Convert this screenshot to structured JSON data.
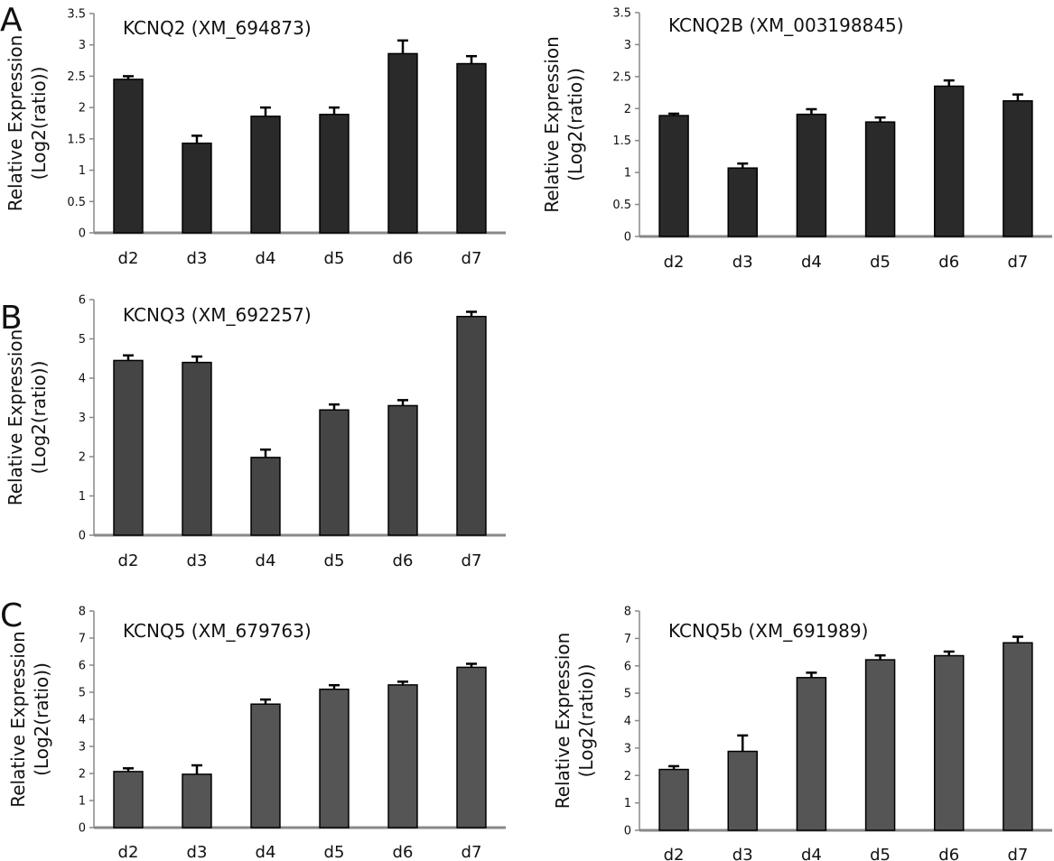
{
  "figure": {
    "panel_letters": [
      "A",
      "B",
      "C"
    ]
  },
  "chart_data": [
    {
      "type": "bar",
      "panel": "A",
      "title": "KCNQ2 (XM_694873)",
      "ylabel": [
        "Relative Expression",
        "(Log2(ratio))"
      ],
      "xlabel": "",
      "categories": [
        "d2",
        "d3",
        "d4",
        "d5",
        "d6",
        "d7"
      ],
      "values": [
        2.45,
        1.43,
        1.86,
        1.89,
        2.86,
        2.7
      ],
      "errors": [
        0.05,
        0.12,
        0.14,
        0.11,
        0.21,
        0.12
      ],
      "ylim": [
        0,
        3.5
      ],
      "yticks": [
        "0",
        "0.5",
        "1",
        "1.5",
        "2",
        "2.5",
        "3",
        "3.5"
      ],
      "bar_color": "#2a2a2a",
      "grid": false,
      "legend": "none"
    },
    {
      "type": "bar",
      "panel": "",
      "title": "KCNQ2B (XM_003198845)",
      "ylabel": [
        "Relative Expression",
        "(Log2(ratio))"
      ],
      "xlabel": "",
      "categories": [
        "d2",
        "d3",
        "d4",
        "d5",
        "d6",
        "d7"
      ],
      "values": [
        1.89,
        1.07,
        1.91,
        1.79,
        2.35,
        2.12
      ],
      "errors": [
        0.03,
        0.07,
        0.08,
        0.07,
        0.09,
        0.1
      ],
      "ylim": [
        0,
        3.5
      ],
      "yticks": [
        "0",
        "0.5",
        "1",
        "1.5",
        "2",
        "2.5",
        "3",
        "3.5"
      ],
      "bar_color": "#2a2a2a",
      "grid": false,
      "legend": "none"
    },
    {
      "type": "bar",
      "panel": "B",
      "title": "KCNQ3 (XM_692257)",
      "ylabel": [
        "Relative Expression",
        "(Log2(ratio))"
      ],
      "xlabel": "",
      "categories": [
        "d2",
        "d3",
        "d4",
        "d5",
        "d6",
        "d7"
      ],
      "values": [
        4.45,
        4.4,
        1.98,
        3.19,
        3.3,
        5.57
      ],
      "errors": [
        0.13,
        0.15,
        0.2,
        0.14,
        0.14,
        0.12
      ],
      "ylim": [
        0,
        6
      ],
      "yticks": [
        "0",
        "1",
        "2",
        "3",
        "4",
        "5",
        "6"
      ],
      "bar_color": "#454545",
      "grid": false,
      "legend": "none"
    },
    {
      "type": "bar",
      "panel": "C",
      "title": "KCNQ5 (XM_679763)",
      "ylabel": [
        "Relative Expression",
        "(Log2(ratio))"
      ],
      "xlabel": "",
      "categories": [
        "d2",
        "d3",
        "d4",
        "d5",
        "d6",
        "d7"
      ],
      "values": [
        2.07,
        1.97,
        4.56,
        5.11,
        5.27,
        5.92
      ],
      "errors": [
        0.12,
        0.33,
        0.17,
        0.15,
        0.12,
        0.13
      ],
      "ylim": [
        0,
        8
      ],
      "yticks": [
        "0",
        "1",
        "2",
        "3",
        "4",
        "5",
        "6",
        "7",
        "8"
      ],
      "bar_color": "#555555",
      "grid": false,
      "legend": "none"
    },
    {
      "type": "bar",
      "panel": "",
      "title": "KCNQ5b (XM_691989)",
      "ylabel": [
        "Relative Expression",
        "(Log2(ratio))"
      ],
      "xlabel": "",
      "categories": [
        "d2",
        "d3",
        "d4",
        "d5",
        "d6",
        "d7"
      ],
      "values": [
        2.22,
        2.88,
        5.57,
        6.22,
        6.37,
        6.84
      ],
      "errors": [
        0.12,
        0.58,
        0.18,
        0.16,
        0.15,
        0.22
      ],
      "ylim": [
        0,
        8
      ],
      "yticks": [
        "0",
        "1",
        "2",
        "3",
        "4",
        "5",
        "6",
        "7",
        "8"
      ],
      "bar_color": "#555555",
      "grid": false,
      "legend": "none"
    }
  ]
}
